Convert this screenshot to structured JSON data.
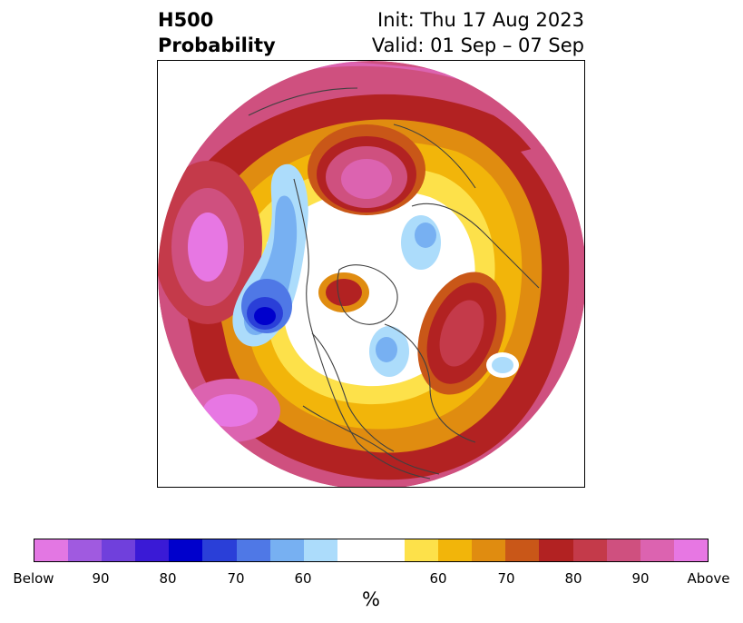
{
  "title": {
    "left_line1": "H500",
    "left_line2": "Probability",
    "right_line1": "Init: Thu 17 Aug 2023",
    "right_line2": "Valid: 01 Sep – 07 Sep"
  },
  "map": {
    "projection": "north-polar-stereographic",
    "coastline_color": "#404040",
    "description_icon": "hemisphere-map"
  },
  "colorbar": {
    "label": "%",
    "colors": [
      "#e377e3",
      "#a05ae0",
      "#7040dc",
      "#3a1ad6",
      "#0000cc",
      "#2a3fd8",
      "#4f78e6",
      "#77b0f2",
      "#acdcfb",
      "#ffffff",
      "#fde14a",
      "#f2b50a",
      "#e08c10",
      "#c95718",
      "#b22222",
      "#c43a4a",
      "#cf507f",
      "#dc63b0",
      "#e777e3"
    ],
    "ticks": [
      "Below",
      "90",
      "80",
      "70",
      "60",
      "60",
      "70",
      "80",
      "90",
      "Above"
    ]
  }
}
